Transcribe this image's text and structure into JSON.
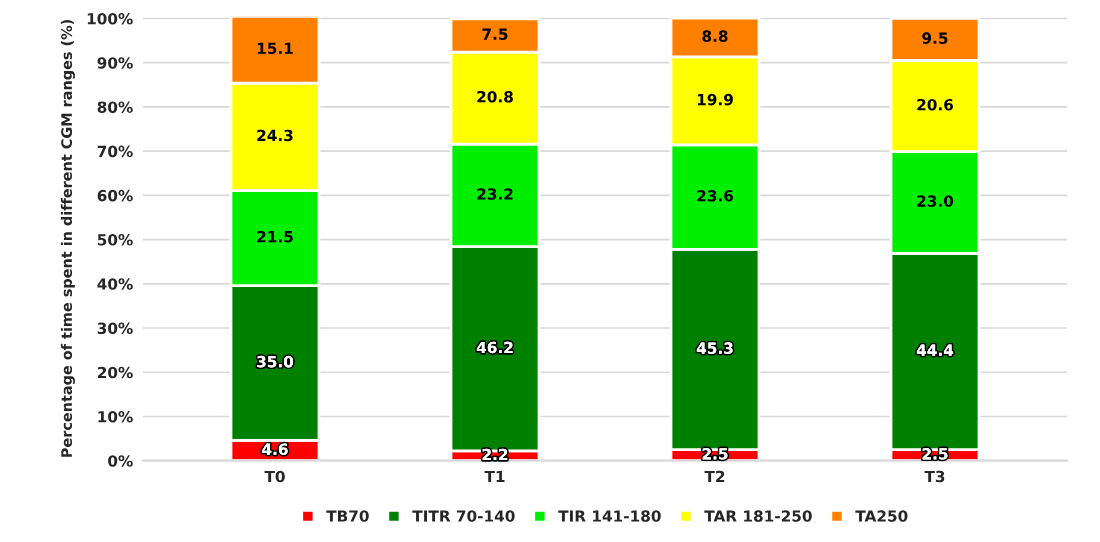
{
  "chart_data": {
    "type": "bar",
    "stacked": true,
    "ylabel": "Percentage of time spent in different CGM ranges (%)",
    "categories": [
      "T0",
      "T1",
      "T2",
      "T3"
    ],
    "series": [
      {
        "name": "TB70",
        "color": "#ff0000",
        "values": [
          4.6,
          2.2,
          2.5,
          2.5
        ],
        "value_labels": [
          "4.6",
          "2.2",
          "2.5",
          "2.5"
        ]
      },
      {
        "name": "TITR 70-140",
        "color": "#008000",
        "values": [
          35.0,
          46.2,
          45.3,
          44.4
        ],
        "value_labels": [
          "35.0",
          "46.2",
          "45.3",
          "44.4"
        ]
      },
      {
        "name": "TIR 141-180",
        "color": "#00ee00",
        "values": [
          21.5,
          23.2,
          23.6,
          23.0
        ],
        "value_labels": [
          "21.5",
          "23.2",
          "23.6",
          "23.0"
        ]
      },
      {
        "name": "TAR 181-250",
        "color": "#ffff00",
        "values": [
          24.3,
          20.8,
          19.9,
          20.6
        ],
        "value_labels": [
          "24.3",
          "20.8",
          "19.9",
          "20.6"
        ]
      },
      {
        "name": "TA250",
        "color": "#ff7f00",
        "values": [
          15.1,
          7.5,
          8.8,
          9.5
        ],
        "value_labels": [
          "15.1",
          "7.5",
          "8.8",
          "9.5"
        ]
      }
    ],
    "ylim": [
      0,
      100.5
    ],
    "yticks": [
      {
        "value": 0,
        "label": "0%"
      },
      {
        "value": 10,
        "label": "10%"
      },
      {
        "value": 20,
        "label": "20%"
      },
      {
        "value": 30,
        "label": "30%"
      },
      {
        "value": 40,
        "label": "40%"
      },
      {
        "value": 50,
        "label": "50%"
      },
      {
        "value": 60,
        "label": "60%"
      },
      {
        "value": 70,
        "label": "70%"
      },
      {
        "value": 80,
        "label": "80%"
      },
      {
        "value": 90,
        "label": "90%"
      },
      {
        "value": 100,
        "label": "100%"
      }
    ],
    "grid": "y",
    "legend": "bottom"
  }
}
